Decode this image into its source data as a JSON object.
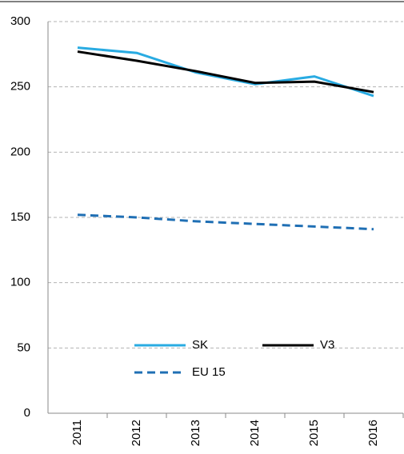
{
  "chart_data": {
    "type": "line",
    "categories": [
      "2011",
      "2012",
      "2013",
      "2014",
      "2015",
      "2016"
    ],
    "series": [
      {
        "name": "SK",
        "color": "#29abe2",
        "dash": false,
        "values": [
          280,
          276,
          261,
          252,
          258,
          243
        ]
      },
      {
        "name": "V3",
        "color": "#000000",
        "dash": false,
        "values": [
          277,
          270,
          262,
          253,
          254,
          246
        ]
      },
      {
        "name": "EU 15",
        "color": "#1f6fb4",
        "dash": true,
        "values": [
          152,
          150,
          147,
          145,
          143,
          141
        ]
      }
    ],
    "ylim": [
      0,
      300
    ],
    "yticks": [
      0,
      50,
      100,
      150,
      200,
      250,
      300
    ],
    "grid": true,
    "legend": "lower center"
  }
}
